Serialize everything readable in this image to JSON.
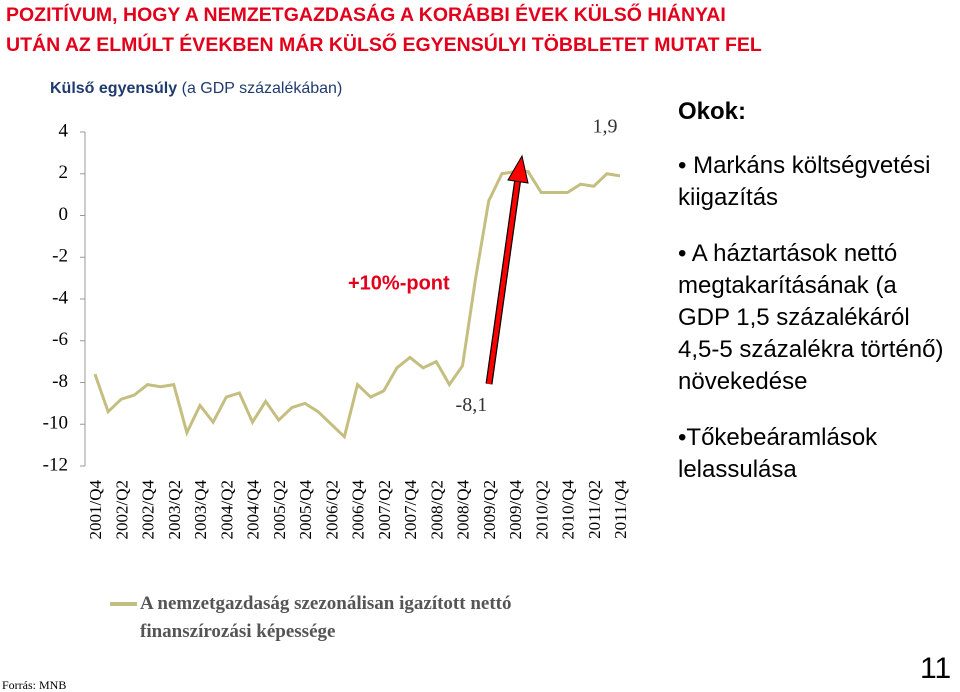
{
  "slide_title": [
    "POZITÍVUM, HOGY A NEMZETGAZDASÁG A KORÁBBI ÉVEK KÜLSŐ HIÁNYAI",
    "UTÁN AZ ELMÚLT ÉVEKBEN MÁR KÜLSŐ EGYENSÚLYI TÖBBLETET MUTAT FEL"
  ],
  "chart_data": {
    "type": "line",
    "subtitle_bold": "Külső egyensúly",
    "subtitle_rest": "(a GDP százalékában)",
    "categories": [
      "2001/Q4",
      null,
      "2002/Q2",
      null,
      "2002/Q4",
      null,
      "2003/Q2",
      null,
      "2003/Q4",
      null,
      "2004/Q2",
      null,
      "2004/Q4",
      null,
      "2005/Q2",
      null,
      "2005/Q4",
      null,
      "2006/Q2",
      null,
      "2006/Q4",
      null,
      "2007/Q2",
      null,
      "2007/Q4",
      null,
      "2008/Q2",
      null,
      "2008/Q4",
      null,
      "2009/Q2",
      null,
      "2009/Q4",
      null,
      "2010/Q2",
      null,
      "2010/Q4",
      null,
      "2011/Q2",
      null,
      "2011/Q4"
    ],
    "series": [
      {
        "name": "A nemzetgazdaság szezonálisan igazított nettó finanszírozási képessége",
        "color": "#c4bf80",
        "values": [
          -7.6,
          -9.4,
          -8.8,
          -8.6,
          -8.1,
          -8.2,
          -8.1,
          -10.4,
          -9.1,
          -9.9,
          -8.7,
          -8.5,
          -9.9,
          -8.9,
          -9.8,
          -9.2,
          -9.0,
          -9.4,
          -10.0,
          -10.6,
          -8.1,
          -8.7,
          -8.4,
          -7.3,
          -6.8,
          -7.3,
          -7.0,
          -8.1,
          -7.2,
          -3.0,
          0.7,
          2.0,
          2.1,
          2.1,
          1.1,
          1.1,
          1.1,
          1.5,
          1.4,
          2.0,
          1.9
        ],
        "value_labels": [
          null,
          null,
          null,
          null,
          null,
          null,
          null,
          null,
          null,
          null,
          null,
          null,
          null,
          null,
          null,
          null,
          null,
          null,
          null,
          null,
          null,
          null,
          null,
          null,
          null,
          null,
          null,
          "-8,1",
          null,
          null,
          null,
          null,
          null,
          null,
          null,
          null,
          null,
          null,
          null,
          null,
          "1,9"
        ]
      }
    ],
    "ylim": [
      -12,
      4
    ],
    "yticks": [
      4,
      2,
      0,
      -2,
      -4,
      -6,
      -8,
      -10,
      -12
    ],
    "grid": false,
    "annotations": [
      "+10%-pont"
    ]
  },
  "reasons": {
    "heading": "Okok:",
    "items": [
      "Markáns költségvetési kiigazítás",
      "A háztartások nettó megtakarításának (a GDP 1,5 százalékáról 4,5-5 százalékra történő) növekedése",
      "Tőkebeáramlások lelassulása"
    ]
  },
  "source": "Forrás: MNB",
  "page_number": 11
}
